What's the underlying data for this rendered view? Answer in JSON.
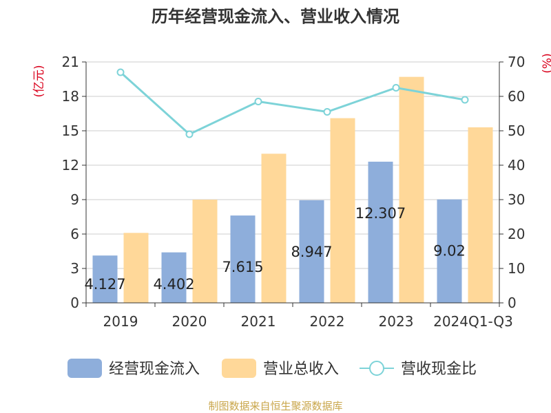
{
  "chart_data": {
    "type": "bar",
    "title": "历年经营现金流入、营业收入情况",
    "categories": [
      "2019",
      "2020",
      "2021",
      "2022",
      "2023",
      "2024Q1-Q3"
    ],
    "series": [
      {
        "name": "经营现金流入",
        "axis": "left",
        "color": "#8eaedb",
        "values": [
          4.127,
          4.402,
          7.615,
          8.947,
          12.307,
          9.02
        ]
      },
      {
        "name": "营业总收入",
        "axis": "left",
        "color": "#ffd899",
        "values": [
          6.1,
          9.0,
          13.0,
          16.1,
          19.7,
          15.3
        ]
      },
      {
        "name": "营收现金比",
        "axis": "right",
        "type": "line",
        "color": "#7dd3d8",
        "values": [
          67.0,
          49.0,
          58.5,
          55.5,
          62.5,
          59.0
        ]
      }
    ],
    "data_labels": [
      "4.127",
      "4.402",
      "7.615",
      "8.947",
      "12.307",
      "9.02"
    ],
    "left_axis": {
      "unit": "(亿元)",
      "ylim": [
        0,
        21
      ],
      "ticks": [
        0,
        3,
        6,
        9,
        12,
        15,
        18,
        21
      ]
    },
    "right_axis": {
      "unit": "(%)",
      "ylim": [
        0,
        70
      ],
      "ticks": [
        0,
        10,
        20,
        30,
        40,
        50,
        60,
        70
      ]
    },
    "grid": true,
    "legend_position": "bottom"
  },
  "source": "制图数据来自恒生聚源数据库"
}
